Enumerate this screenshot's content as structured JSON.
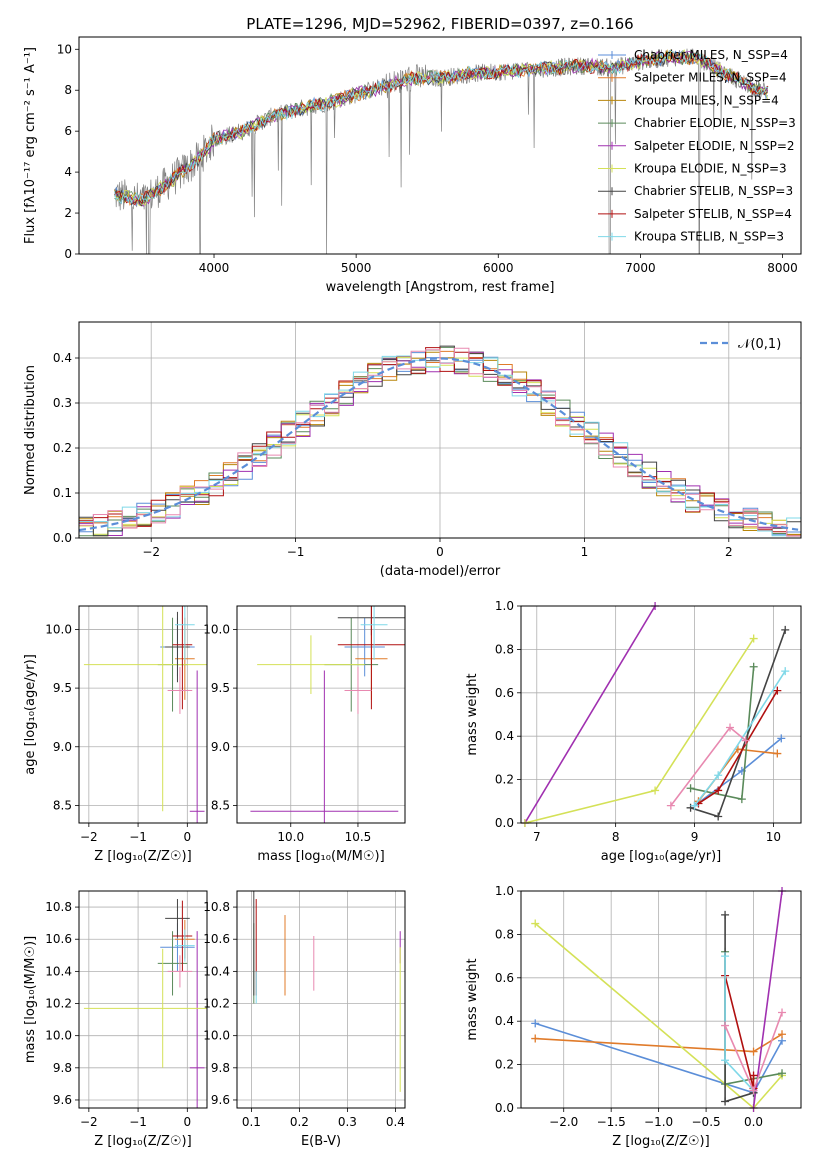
{
  "chart_data": [
    {
      "type": "line",
      "title": "PLATE=1296, MJD=52962, FIBERID=0397, z=0.166",
      "xlabel": "wavelength [Angstrom, rest frame]",
      "ylabel": "Flux [fλ10⁻¹⁷ erg cm⁻² s⁻¹ A⁻¹]",
      "xlim": [
        3050,
        8130
      ],
      "ylim": [
        0,
        10.6
      ],
      "xticks": [
        "4000",
        "5000",
        "6000",
        "7000",
        "8000"
      ],
      "yticks": [
        "0",
        "2",
        "4",
        "6",
        "8",
        "10"
      ],
      "legend_loc": "right",
      "data_color": "#808080",
      "series": [
        {
          "name": "Chabrier MILES, N_SSP=4",
          "color": "#5b8ed8"
        },
        {
          "name": "Salpeter MILES, N_SSP=4",
          "color": "#e07b2a"
        },
        {
          "name": "Kroupa MILES, N_SSP=4",
          "color": "#b8860b"
        },
        {
          "name": "Chabrier ELODIE, N_SSP=3",
          "color": "#5a8a5a"
        },
        {
          "name": "Salpeter ELODIE, N_SSP=2",
          "color": "#a030b0"
        },
        {
          "name": "Kroupa ELODIE, N_SSP=3",
          "color": "#d4e157"
        },
        {
          "name": "Chabrier STELIB, N_SSP=3",
          "color": "#444444"
        },
        {
          "name": "Salpeter STELIB, N_SSP=4",
          "color": "#b01010"
        },
        {
          "name": "Kroupa STELIB, N_SSP=3",
          "color": "#7fd8e8"
        }
      ],
      "continuum": {
        "x": [
          3300,
          3500,
          3700,
          3900,
          4000,
          4200,
          4400,
          4600,
          4800,
          5000,
          5200,
          5400,
          5600,
          5800,
          6000,
          6200,
          6400,
          6600,
          6800,
          7000,
          7200,
          7400,
          7600,
          7800,
          7900
        ],
        "y": [
          2.9,
          2.6,
          3.6,
          4.7,
          5.6,
          6.0,
          6.7,
          7.1,
          7.4,
          7.8,
          8.2,
          8.6,
          8.6,
          8.8,
          8.9,
          9.0,
          9.1,
          9.2,
          9.1,
          9.4,
          9.6,
          9.6,
          8.8,
          8.1,
          7.9
        ]
      }
    },
    {
      "type": "line",
      "xlabel": "(data-model)/error",
      "ylabel": "Normed distribution",
      "xlim": [
        -2.5,
        2.5
      ],
      "ylim": [
        0,
        0.48
      ],
      "xticks": [
        "−2",
        "−1",
        "0",
        "1",
        "2"
      ],
      "yticks": [
        "0.0",
        "0.1",
        "0.2",
        "0.3",
        "0.4"
      ],
      "legend": [
        "𝒩(0,1)"
      ],
      "legend_loc": "upper right",
      "bin_width": 0.1
    },
    {
      "type": "scatter",
      "xlabel": "Z [log₁₀(Z/Z☉)]",
      "ylabel": "age  [log₁₀(age/yr)]",
      "xlim": [
        -2.2,
        0.4
      ],
      "ylim": [
        8.35,
        10.2
      ],
      "xticks": [
        "−2",
        "−1",
        "0"
      ],
      "yticks": [
        "8.5",
        "9.0",
        "9.5",
        "10.0"
      ],
      "points": [
        {
          "x": -0.2,
          "y": 9.85,
          "xerr": 0.35,
          "yerr": 0.25,
          "color": "#5b8ed8"
        },
        {
          "x": -0.05,
          "y": 9.75,
          "xerr": 0.2,
          "yerr": 0.35,
          "color": "#e07b2a"
        },
        {
          "x": -0.3,
          "y": 9.7,
          "xerr": 0.3,
          "yerr": 0.4,
          "color": "#5a8a5a"
        },
        {
          "x": 0.2,
          "y": 8.45,
          "xerr": 0.15,
          "yerr": 1.2,
          "color": "#a030b0"
        },
        {
          "x": -0.5,
          "y": 9.7,
          "xerr": 1.6,
          "yerr": 1.25,
          "color": "#d4e157"
        },
        {
          "x": -0.2,
          "y": 9.85,
          "xerr": 0.25,
          "yerr": 0.3,
          "color": "#444444"
        },
        {
          "x": -0.1,
          "y": 9.87,
          "xerr": 0.2,
          "yerr": 0.55,
          "color": "#b01010"
        },
        {
          "x": -0.05,
          "y": 10.04,
          "xerr": 0.2,
          "yerr": 0.3,
          "color": "#7fd8e8"
        },
        {
          "x": -0.15,
          "y": 9.48,
          "xerr": 0.25,
          "yerr": 0.2,
          "color": "#e889b0"
        }
      ]
    },
    {
      "type": "scatter",
      "xlabel": "mass [log₁₀(M/M☉)]",
      "xlim": [
        9.6,
        10.85
      ],
      "ylim": [
        8.35,
        10.2
      ],
      "xticks": [
        "10.0",
        "10.5"
      ],
      "yticks": [
        "8.5",
        "9.0",
        "9.5",
        "10.0"
      ],
      "points": [
        {
          "x": 10.55,
          "y": 9.85,
          "xerr": 0.15,
          "yerr": 0.25,
          "color": "#5b8ed8"
        },
        {
          "x": 10.6,
          "y": 9.75,
          "xerr": 0.12,
          "yerr": 0.35,
          "color": "#e07b2a"
        },
        {
          "x": 10.45,
          "y": 9.7,
          "xerr": 0.2,
          "yerr": 0.4,
          "color": "#5a8a5a"
        },
        {
          "x": 10.25,
          "y": 8.45,
          "xerr": 0.55,
          "yerr": 1.2,
          "color": "#a030b0"
        },
        {
          "x": 10.15,
          "y": 9.7,
          "xerr": 0.4,
          "yerr": 0.25,
          "color": "#d4e157"
        },
        {
          "x": 10.6,
          "y": 10.1,
          "xerr": 0.25,
          "yerr": 0.15,
          "color": "#444444"
        },
        {
          "x": 10.6,
          "y": 9.87,
          "xerr": 0.25,
          "yerr": 0.55,
          "color": "#b01010"
        },
        {
          "x": 10.62,
          "y": 10.04,
          "xerr": 0.1,
          "yerr": 0.3,
          "color": "#7fd8e8"
        },
        {
          "x": 10.5,
          "y": 9.48,
          "xerr": 0.1,
          "yerr": 0.2,
          "color": "#e889b0"
        }
      ]
    },
    {
      "type": "line",
      "xlabel": "age  [log₁₀(age/yr)]",
      "ylabel": "mass weight",
      "xlim": [
        6.8,
        10.35
      ],
      "ylim": [
        0,
        1.0
      ],
      "xticks": [
        "7",
        "8",
        "9",
        "10"
      ],
      "yticks": [
        "0.0",
        "0.2",
        "0.4",
        "0.6",
        "0.8",
        "1.0"
      ],
      "series": [
        {
          "color": "#a030b0",
          "x": [
            6.85,
            8.5
          ],
          "y": [
            0.0,
            1.0
          ]
        },
        {
          "color": "#d4e157",
          "x": [
            6.85,
            8.5,
            9.75
          ],
          "y": [
            0.0,
            0.15,
            0.85
          ]
        },
        {
          "color": "#5b8ed8",
          "x": [
            9.0,
            9.6,
            10.1
          ],
          "y": [
            0.08,
            0.24,
            0.39
          ]
        },
        {
          "color": "#e07b2a",
          "x": [
            9.05,
            9.55,
            10.05
          ],
          "y": [
            0.1,
            0.34,
            0.32
          ]
        },
        {
          "color": "#5a8a5a",
          "x": [
            8.95,
            9.6,
            9.75
          ],
          "y": [
            0.16,
            0.11,
            0.72
          ]
        },
        {
          "color": "#444444",
          "x": [
            8.95,
            9.3,
            10.15
          ],
          "y": [
            0.07,
            0.03,
            0.89
          ]
        },
        {
          "color": "#b01010",
          "x": [
            9.05,
            9.3,
            10.05
          ],
          "y": [
            0.09,
            0.15,
            0.61
          ]
        },
        {
          "color": "#7fd8e8",
          "x": [
            9.0,
            9.3,
            10.15
          ],
          "y": [
            0.08,
            0.22,
            0.7
          ]
        },
        {
          "color": "#e889b0",
          "x": [
            8.7,
            9.45,
            9.65
          ],
          "y": [
            0.08,
            0.44,
            0.38
          ]
        }
      ]
    },
    {
      "type": "scatter",
      "xlabel": "Z [log₁₀(Z/Z☉)]",
      "ylabel": "mass [log₁₀(M/M☉)]",
      "xlim": [
        -2.2,
        0.4
      ],
      "ylim": [
        9.55,
        10.9
      ],
      "xticks": [
        "−2",
        "−1",
        "0"
      ],
      "yticks": [
        "9.6",
        "9.8",
        "10.0",
        "10.2",
        "10.4",
        "10.6",
        "10.8"
      ],
      "points": [
        {
          "x": -0.2,
          "y": 10.55,
          "xerr": 0.35,
          "yerr": 0.15,
          "color": "#5b8ed8"
        },
        {
          "x": -0.05,
          "y": 10.6,
          "xerr": 0.2,
          "yerr": 0.12,
          "color": "#e07b2a"
        },
        {
          "x": -0.3,
          "y": 10.45,
          "xerr": 0.3,
          "yerr": 0.2,
          "color": "#5a8a5a"
        },
        {
          "x": 0.2,
          "y": 9.8,
          "xerr": 0.15,
          "yerr": 0.85,
          "color": "#a030b0"
        },
        {
          "x": -0.5,
          "y": 10.17,
          "xerr": 1.6,
          "yerr": 0.37,
          "color": "#d4e157"
        },
        {
          "x": -0.2,
          "y": 10.73,
          "xerr": 0.25,
          "yerr": 0.12,
          "color": "#444444"
        },
        {
          "x": -0.1,
          "y": 10.62,
          "xerr": 0.2,
          "yerr": 0.22,
          "color": "#b01010"
        },
        {
          "x": -0.05,
          "y": 10.56,
          "xerr": 0.2,
          "yerr": 0.1,
          "color": "#7fd8e8"
        },
        {
          "x": -0.15,
          "y": 10.4,
          "xerr": 0.25,
          "yerr": 0.1,
          "color": "#e889b0"
        }
      ]
    },
    {
      "type": "scatter",
      "xlabel": "E(B-V)",
      "xlim": [
        0.07,
        0.42
      ],
      "ylim": [
        9.55,
        10.9
      ],
      "xticks": [
        "0.1",
        "0.2",
        "0.3",
        "0.4"
      ],
      "yticks": [
        "9.6",
        "9.8",
        "10.0",
        "10.2",
        "10.4",
        "10.6",
        "10.8"
      ],
      "points": [
        {
          "x": 0.17,
          "y": 10.55,
          "yerr": 0.2,
          "color": "#5b8ed8"
        },
        {
          "x": 0.17,
          "y": 10.5,
          "yerr": 0.25,
          "color": "#e07b2a"
        },
        {
          "x": 0.105,
          "y": 10.45,
          "yerr": 0.25,
          "color": "#5a8a5a"
        },
        {
          "x": 0.41,
          "y": 10.55,
          "yerr": 0.1,
          "color": "#a030b0"
        },
        {
          "x": 0.41,
          "y": 10.1,
          "yerr": 0.45,
          "color": "#d4e157"
        },
        {
          "x": 0.105,
          "y": 10.6,
          "yerr": 0.35,
          "color": "#444444"
        },
        {
          "x": 0.11,
          "y": 10.55,
          "yerr": 0.3,
          "color": "#b01010"
        },
        {
          "x": 0.11,
          "y": 10.3,
          "yerr": 0.1,
          "color": "#7fd8e8"
        },
        {
          "x": 0.23,
          "y": 10.45,
          "yerr": 0.17,
          "color": "#e889b0"
        }
      ]
    },
    {
      "type": "line",
      "xlabel": "Z [log₁₀(Z/Z☉)]",
      "ylabel": "mass weight",
      "xlim": [
        -2.45,
        0.5
      ],
      "ylim": [
        0,
        1.0
      ],
      "xticks": [
        "−2.0",
        "−1.5",
        "−1.0",
        "−0.5",
        "0.0"
      ],
      "yticks": [
        "0.0",
        "0.2",
        "0.4",
        "0.6",
        "0.8",
        "1.0"
      ],
      "series": [
        {
          "color": "#5b8ed8",
          "x": [
            -2.3,
            0.0,
            0.3
          ],
          "y": [
            0.39,
            0.07,
            0.31
          ]
        },
        {
          "color": "#e07b2a",
          "x": [
            -2.3,
            0.0,
            0.3
          ],
          "y": [
            0.32,
            0.26,
            0.34
          ]
        },
        {
          "color": "#d4e157",
          "x": [
            -2.3,
            0.0,
            0.3
          ],
          "y": [
            0.85,
            0.0,
            0.15
          ]
        },
        {
          "color": "#a030b0",
          "x": [
            0.0,
            0.3
          ],
          "y": [
            0.0,
            1.0
          ]
        },
        {
          "color": "#5a8a5a",
          "x": [
            -0.3,
            -0.3,
            0.3
          ],
          "y": [
            0.72,
            0.11,
            0.16
          ]
        },
        {
          "color": "#444444",
          "x": [
            -0.3,
            -0.3,
            0.0
          ],
          "y": [
            0.89,
            0.03,
            0.07
          ]
        },
        {
          "color": "#b01010",
          "x": [
            -0.3,
            0.0,
            0.0
          ],
          "y": [
            0.61,
            0.09,
            0.15
          ]
        },
        {
          "color": "#7fd8e8",
          "x": [
            -0.3,
            -0.3,
            0.0
          ],
          "y": [
            0.7,
            0.22,
            0.08
          ]
        },
        {
          "color": "#e889b0",
          "x": [
            -0.3,
            0.0,
            0.3
          ],
          "y": [
            0.38,
            0.08,
            0.44
          ]
        }
      ]
    }
  ]
}
